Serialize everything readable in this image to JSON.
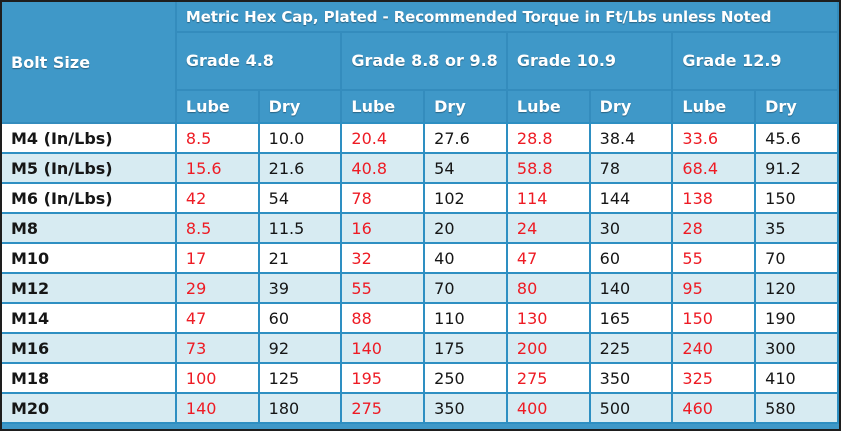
{
  "chart_data": {
    "type": "table",
    "title": "Metric Hex Cap, Plated - Recommended Torque in Ft/Lbs unless Noted",
    "corner_header": "Bolt Size",
    "group_headers": [
      "Grade 4.8",
      "Grade 8.8 or 9.8",
      "Grade 10.9",
      "Grade 12.9"
    ],
    "column_headers": [
      "Lube",
      "Dry",
      "Lube",
      "Dry",
      "Lube",
      "Dry",
      "Lube",
      "Dry"
    ],
    "rows": [
      {
        "bolt": "M4 (In/Lbs)",
        "values": [
          "8.5",
          "10.0",
          "20.4",
          "27.6",
          "28.8",
          "38.4",
          "33.6",
          "45.6"
        ]
      },
      {
        "bolt": "M5 (In/Lbs)",
        "values": [
          "15.6",
          "21.6",
          "40.8",
          "54",
          "58.8",
          "78",
          "68.4",
          "91.2"
        ]
      },
      {
        "bolt": "M6 (In/Lbs)",
        "values": [
          "42",
          "54",
          "78",
          "102",
          "114",
          "144",
          "138",
          "150"
        ]
      },
      {
        "bolt": "M8",
        "values": [
          "8.5",
          "11.5",
          "16",
          "20",
          "24",
          "30",
          "28",
          "35"
        ]
      },
      {
        "bolt": "M10",
        "values": [
          "17",
          "21",
          "32",
          "40",
          "47",
          "60",
          "55",
          "70"
        ]
      },
      {
        "bolt": "M12",
        "values": [
          "29",
          "39",
          "55",
          "70",
          "80",
          "140",
          "95",
          "120"
        ]
      },
      {
        "bolt": "M14",
        "values": [
          "47",
          "60",
          "88",
          "110",
          "130",
          "165",
          "150",
          "190"
        ]
      },
      {
        "bolt": "M16",
        "values": [
          "73",
          "92",
          "140",
          "175",
          "200",
          "225",
          "240",
          "300"
        ]
      },
      {
        "bolt": "M18",
        "values": [
          "100",
          "125",
          "195",
          "250",
          "275",
          "350",
          "325",
          "410"
        ]
      },
      {
        "bolt": "M20",
        "values": [
          "140",
          "180",
          "275",
          "350",
          "400",
          "500",
          "460",
          "580"
        ]
      }
    ],
    "layout_hints": {
      "lube_columns_text_color_note": "Lube columns rendered in red, Dry columns in black",
      "alternating_rows": true
    }
  },
  "colors": {
    "header_bg": "#3f98c8",
    "header_text": "#ffffff",
    "grid_blue": "#2e8fc2",
    "header_grid": "#348cbd",
    "row_even_bg": "#ffffff",
    "row_odd_bg": "#d7ebf2",
    "lube_text": "#ee1b24",
    "value_text": "#161616",
    "outer_border": "#1e1e1e"
  }
}
